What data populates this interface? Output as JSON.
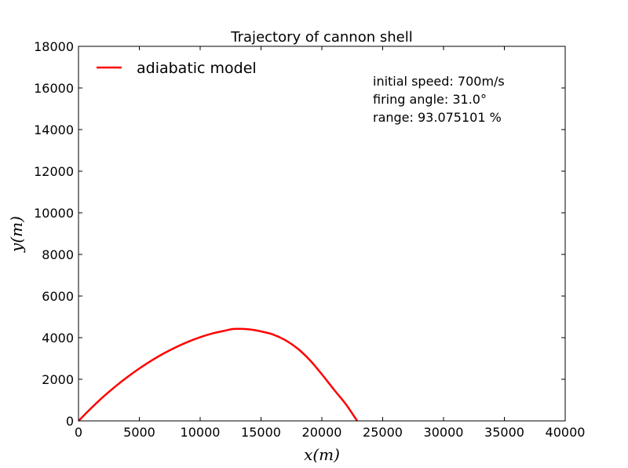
{
  "chart_data": {
    "type": "line",
    "title": "Trajectory of cannon shell",
    "xlabel": "x(m)",
    "ylabel": "y(m)",
    "xlim": [
      0,
      40000
    ],
    "ylim": [
      0,
      18000
    ],
    "x_ticks": [
      0,
      5000,
      10000,
      15000,
      20000,
      25000,
      30000,
      35000,
      40000
    ],
    "y_ticks": [
      0,
      2000,
      4000,
      6000,
      8000,
      10000,
      12000,
      14000,
      16000,
      18000
    ],
    "grid": false,
    "legend_position": "top-left",
    "series": [
      {
        "name": "adiabatic model",
        "color": "#ff0000",
        "x": [
          0,
          1000,
          2000,
          3000,
          4000,
          5000,
          6000,
          7000,
          8000,
          9000,
          10000,
          11000,
          12000,
          12800,
          14000,
          15000,
          16000,
          17000,
          18000,
          19000,
          20000,
          21000,
          22000,
          22900
        ],
        "y": [
          0,
          590,
          1140,
          1640,
          2100,
          2520,
          2900,
          3240,
          3540,
          3800,
          4020,
          4200,
          4330,
          4420,
          4400,
          4300,
          4150,
          3880,
          3480,
          2930,
          2240,
          1500,
          780,
          0
        ]
      }
    ],
    "annotations": [
      "initial speed: 700m/s",
      "firing angle: 31.0°",
      "range: 93.075101 %"
    ]
  }
}
